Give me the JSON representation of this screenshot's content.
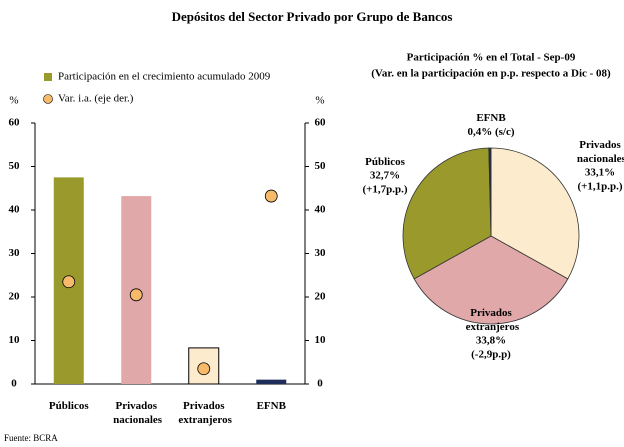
{
  "title": "Depósitos del Sector Privado por Grupo de Bancos",
  "source": "Fuente: BCRA",
  "chart_data": [
    {
      "type": "bar",
      "categories": [
        "Públicos",
        "Privados nacionales",
        "Privados extranjeros",
        "EFNB"
      ],
      "ylabel": "%",
      "y2label": "%",
      "ylim": [
        0,
        60
      ],
      "yticks": [
        0,
        10,
        20,
        30,
        40,
        50,
        60
      ],
      "y2lim": [
        0,
        60
      ],
      "y2ticks": [
        0,
        10,
        20,
        30,
        40,
        50,
        60
      ],
      "series": [
        {
          "name": "Participación en el crecimiento acumulado 2009",
          "kind": "bar",
          "color": "#999a2b",
          "colors": [
            "#999a2b",
            "#e0a8a8",
            "#fdebcd",
            "#1f2d5a"
          ],
          "edgecolors": [
            null,
            null,
            "#000000",
            null
          ],
          "values": [
            47.5,
            43.2,
            8.3,
            1.0
          ]
        },
        {
          "name": "Var. i.a. (eje der.)",
          "kind": "scatter",
          "axis": "y2",
          "color": "#f7b96a",
          "values": [
            23.5,
            20.5,
            3.5,
            43.2
          ]
        }
      ]
    },
    {
      "type": "pie",
      "title": "Participación % en el Total - Sep-09",
      "subtitle": "(Var. en la participación en p.p. respecto a Dic - 08)",
      "categories": [
        "Privados nacionales",
        "Privados extranjeros",
        "Públicos",
        "EFNB"
      ],
      "values": [
        33.1,
        33.8,
        32.7,
        0.4
      ],
      "value_labels": [
        "33,1%",
        "33,8%",
        "32,7%",
        "0,4%"
      ],
      "changes": [
        "(+1,1p.p.)",
        "(-2,9p.p)",
        "(+1,7p.p.)",
        "(s/c)"
      ],
      "colors": [
        "#fdebcd",
        "#e0a8a8",
        "#999a2b",
        "#1f2d5a"
      ]
    }
  ]
}
